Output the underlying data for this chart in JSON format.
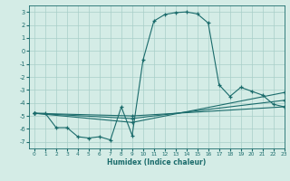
{
  "xlabel": "Humidex (Indice chaleur)",
  "bg_color": "#d4ece6",
  "grid_color": "#a8cfc8",
  "line_color": "#1a6b6b",
  "xlim": [
    -0.5,
    23
  ],
  "ylim": [
    -7.5,
    3.5
  ],
  "yticks": [
    3,
    2,
    1,
    0,
    -1,
    -2,
    -3,
    -4,
    -5,
    -6,
    -7
  ],
  "xticks": [
    0,
    1,
    2,
    3,
    4,
    5,
    6,
    7,
    8,
    9,
    10,
    11,
    12,
    13,
    14,
    15,
    16,
    17,
    18,
    19,
    20,
    21,
    22,
    23
  ],
  "series": [
    {
      "x": [
        0,
        1,
        2,
        3,
        4,
        5,
        6,
        7,
        8,
        9,
        10,
        11,
        12,
        13,
        14,
        15,
        16,
        17,
        18,
        19,
        20,
        21,
        22,
        23
      ],
      "y": [
        -4.8,
        -4.8,
        -5.9,
        -5.9,
        -6.6,
        -6.7,
        -6.6,
        -6.85,
        -4.3,
        -6.5,
        -0.7,
        2.3,
        2.8,
        2.95,
        3.0,
        2.85,
        2.15,
        -2.6,
        -3.5,
        -2.8,
        -3.1,
        -3.4,
        -4.1,
        -4.3
      ]
    },
    {
      "x": [
        0,
        9,
        23
      ],
      "y": [
        -4.8,
        -5.0,
        -4.3
      ]
    },
    {
      "x": [
        0,
        9,
        23
      ],
      "y": [
        -4.8,
        -5.2,
        -3.8
      ]
    },
    {
      "x": [
        0,
        9,
        23
      ],
      "y": [
        -4.8,
        -5.5,
        -3.2
      ]
    }
  ]
}
